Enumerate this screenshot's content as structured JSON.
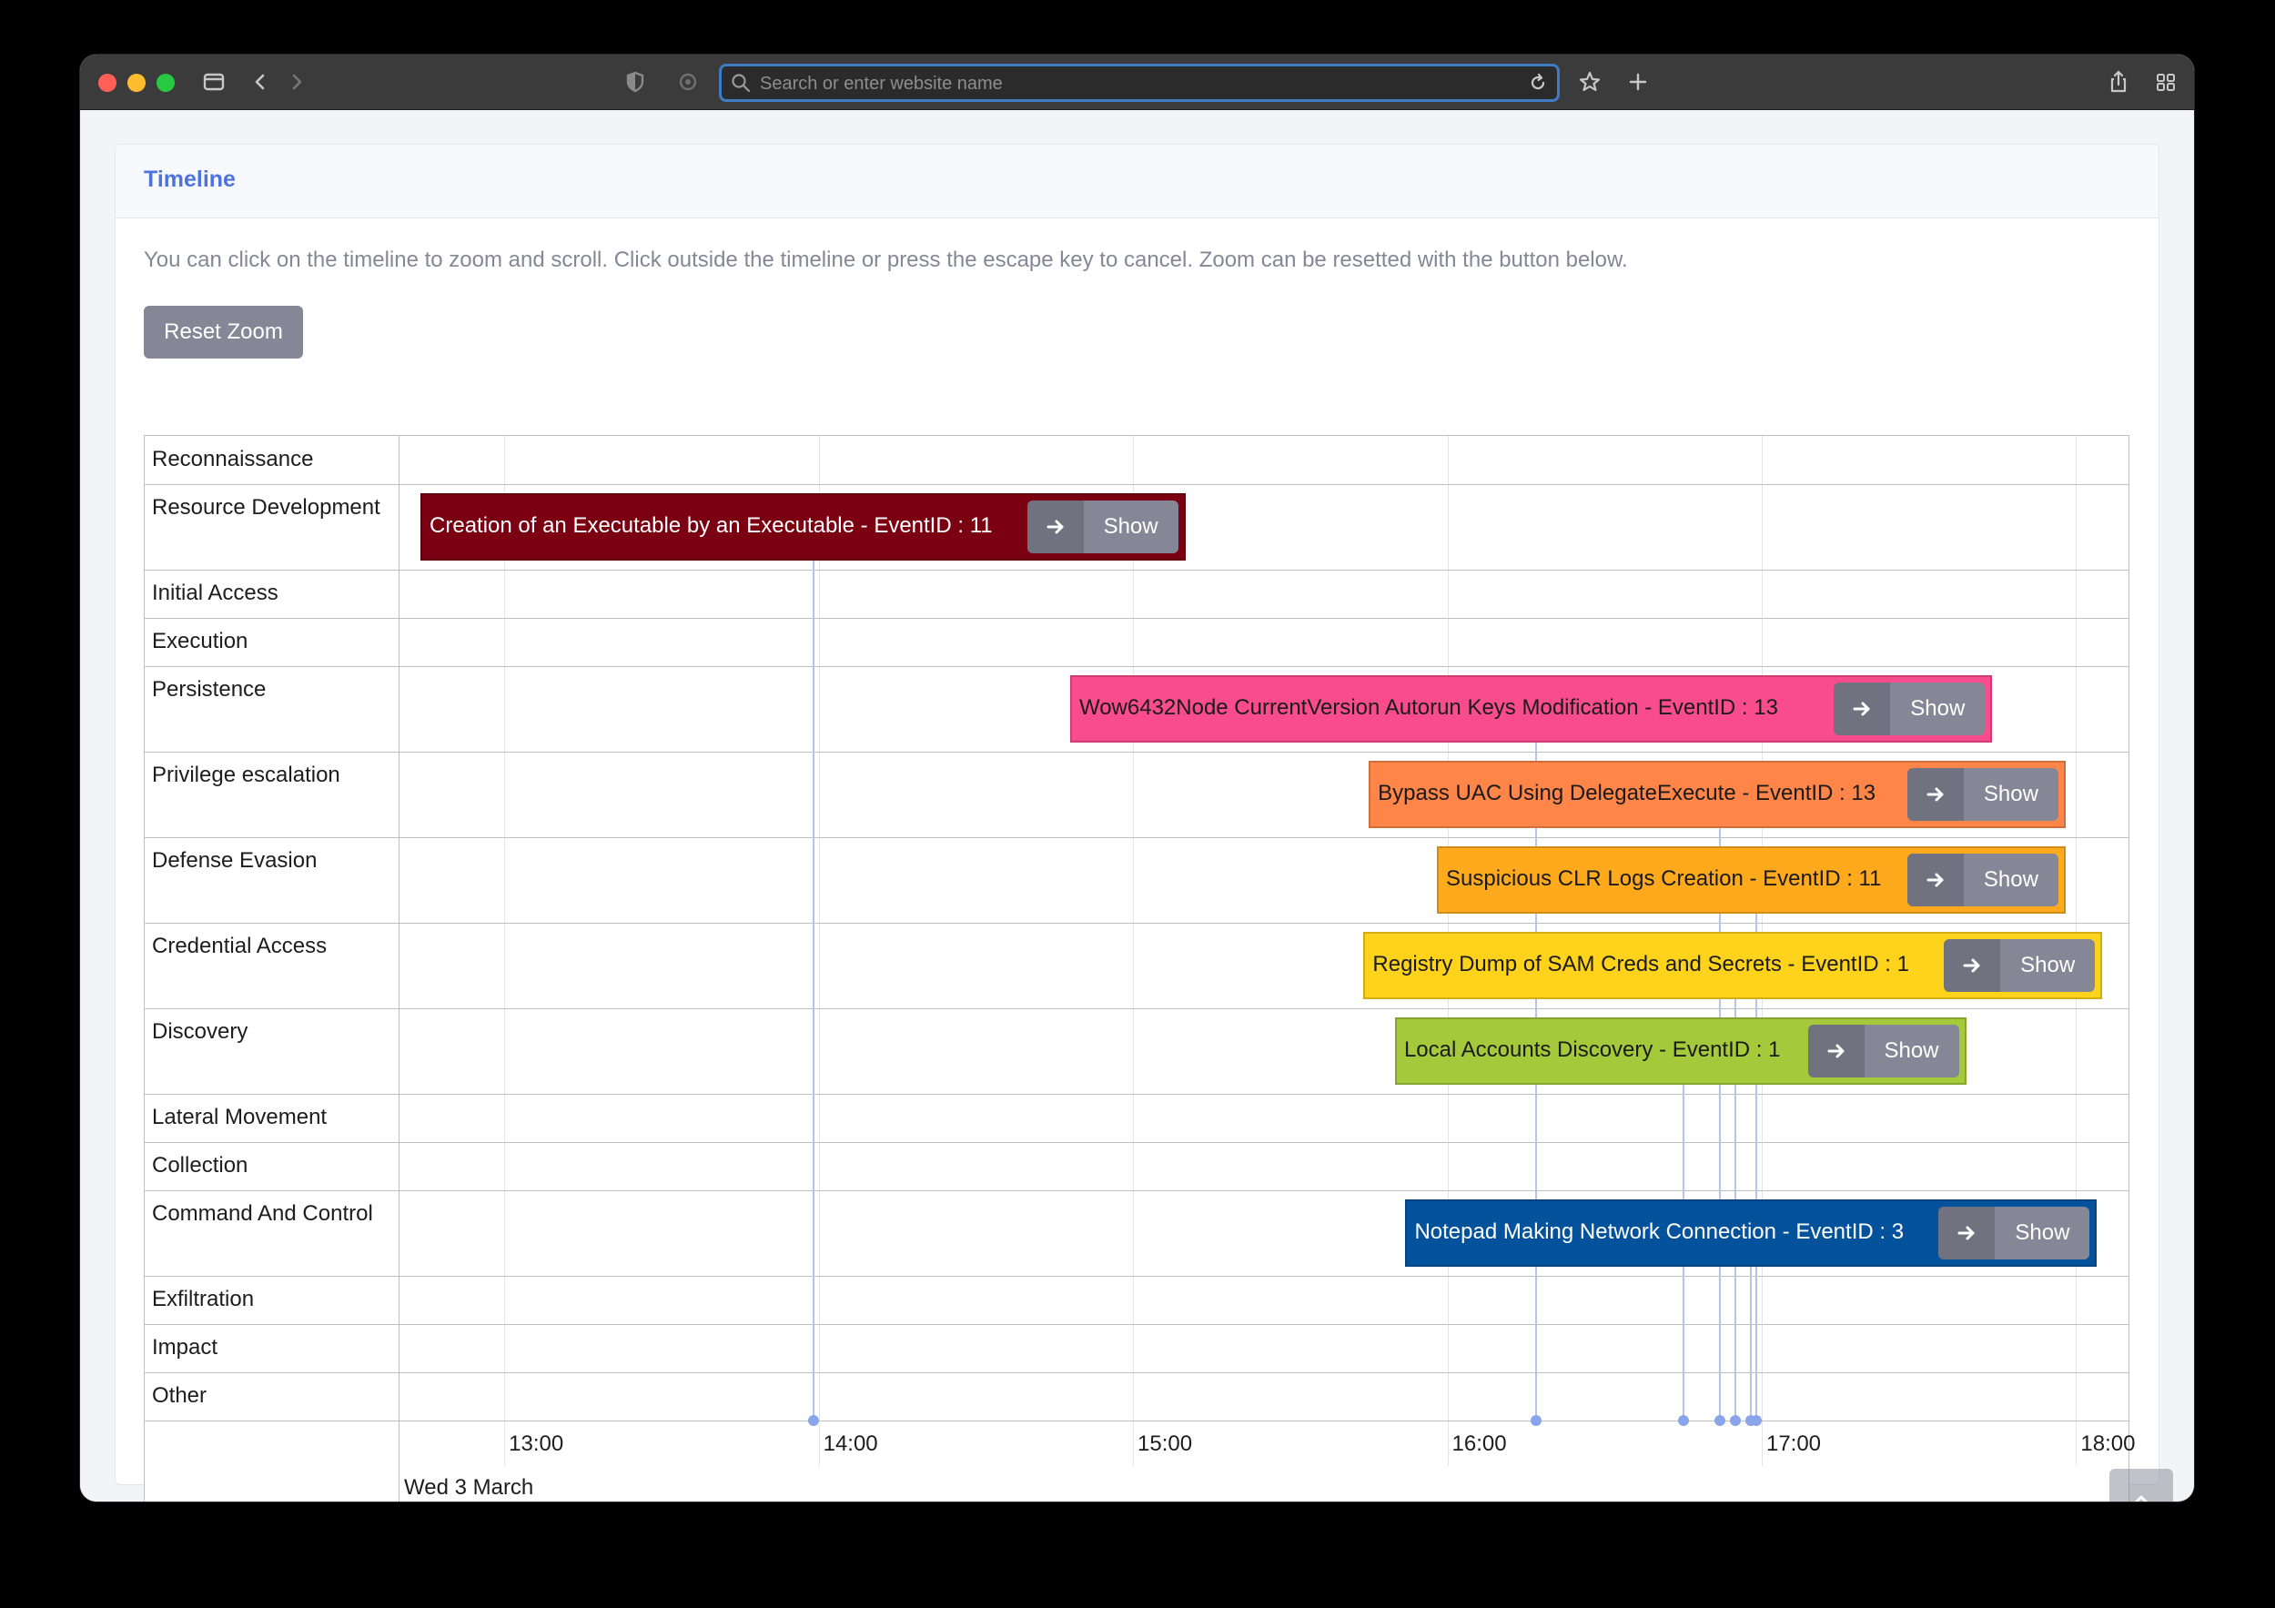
{
  "browser": {
    "url_placeholder": "Search or enter website name"
  },
  "card": {
    "title": "Timeline",
    "instructions": "You can click on the timeline to zoom and scroll. Click outside the timeline or press the escape key to cancel. Zoom can be resetted with the button below.",
    "reset_label": "Reset Zoom"
  },
  "timeline": {
    "groups": [
      "Reconnaissance",
      "Resource Development",
      "Initial Access",
      "Execution",
      "Persistence",
      "Privilege escalation",
      "Defense Evasion",
      "Credential Access",
      "Discovery",
      "Lateral Movement",
      "Collection",
      "Command And Control",
      "Exfiltration",
      "Impact",
      "Other"
    ],
    "axis_ticks": [
      "13:00",
      "14:00",
      "15:00",
      "16:00",
      "17:00",
      "18:00"
    ],
    "axis_date": "Wed 3 March",
    "window": {
      "start": "12:40",
      "end": "18:10"
    },
    "show_label": "Show",
    "events": [
      {
        "group": "Resource Development",
        "label": "Creation of an Executable by an Executable - EventID : 11",
        "start": "12:44",
        "end": "15:10",
        "time": "13:59",
        "color": "#7b0011",
        "text_color": "#ffffff"
      },
      {
        "group": "Persistence",
        "label": "Wow6432Node CurrentVersion Autorun Keys Modification - EventID : 13",
        "start": "14:48",
        "end": "17:44",
        "time": "16:17",
        "color": "#f94c8d",
        "text_color": "#1a1a1a"
      },
      {
        "group": "Privilege escalation",
        "label": "Bypass UAC Using DelegateExecute - EventID : 13",
        "start": "15:45",
        "end": "17:58",
        "time": "16:52",
        "color": "#ff8549",
        "text_color": "#1a1a1a"
      },
      {
        "group": "Defense Evasion",
        "label": "Suspicious CLR Logs Creation - EventID : 11",
        "start": "15:58",
        "end": "17:58",
        "time": "16:59",
        "color": "#ffaa1d",
        "text_color": "#1a1a1a"
      },
      {
        "group": "Credential Access",
        "label": "Registry Dump of SAM Creds and Secrets - EventID : 1",
        "start": "15:44",
        "end": "18:05",
        "time": "16:55",
        "color": "#ffd31b",
        "text_color": "#1a1a1a"
      },
      {
        "group": "Discovery",
        "label": "Local Accounts Discovery - EventID : 1",
        "start": "15:50",
        "end": "17:39",
        "time": "16:45",
        "color": "#a4c93a",
        "text_color": "#1a1a1a"
      },
      {
        "group": "Command And Control",
        "label": "Notepad Making Network Connection - EventID : 3",
        "start": "15:52",
        "end": "18:04",
        "time": "16:58",
        "color": "#05529c",
        "text_color": "#ffffff"
      }
    ]
  },
  "colors": {
    "accent": "#4e73df",
    "button": "#858796"
  }
}
